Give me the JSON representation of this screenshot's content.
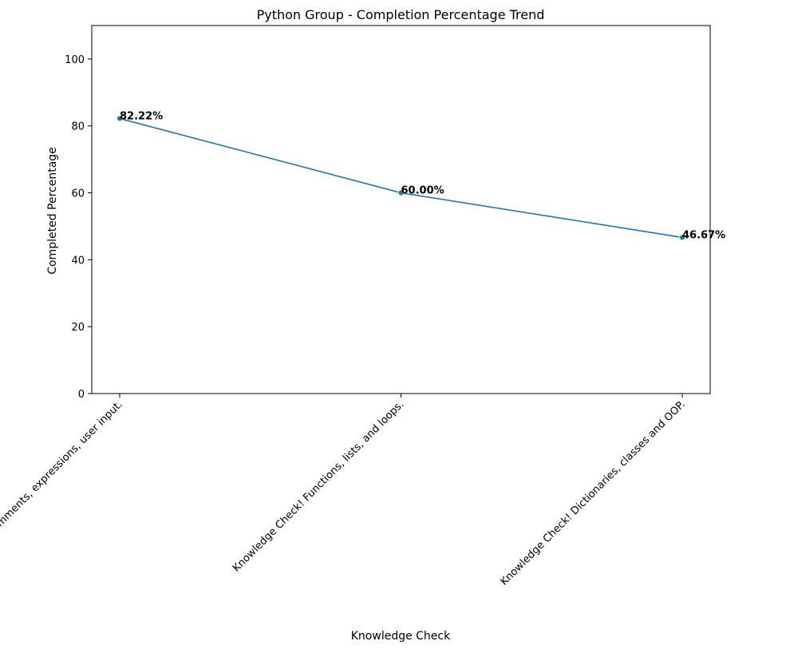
{
  "chart_data": {
    "type": "line",
    "title": "Python Group - Completion Percentage Trend",
    "xlabel": "Knowledge Check",
    "ylabel": "Completed Percentage",
    "categories": [
      "Knowledge Check! Comments, expressions, user input.",
      "Knowledge Check! Functions, lists, and loops.",
      "Knowledge Check! Dictionaries, classes and OOP."
    ],
    "values": [
      82.22,
      60.0,
      46.67
    ],
    "data_labels": [
      "82.22%",
      "60.00%",
      "46.67%"
    ],
    "ylim": [
      0,
      110
    ],
    "yticks": [
      0,
      20,
      40,
      60,
      80,
      100
    ],
    "grid": false,
    "legend": "none",
    "colors": {
      "line": "#1f77b4",
      "marker": "#1f77b4"
    }
  }
}
